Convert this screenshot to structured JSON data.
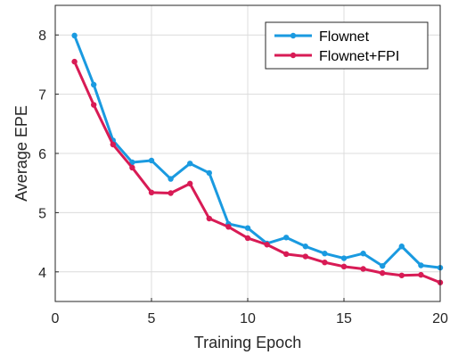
{
  "chart_data": {
    "type": "line",
    "xlabel": "Training Epoch",
    "ylabel": "Average EPE",
    "xlim": [
      0,
      20
    ],
    "ylim": [
      3.5,
      8.5
    ],
    "xticks": [
      0,
      5,
      10,
      15,
      20
    ],
    "yticks": [
      4,
      5,
      6,
      7,
      8
    ],
    "grid": true,
    "legend_position": "top-right",
    "x": [
      1,
      2,
      3,
      4,
      5,
      6,
      7,
      8,
      9,
      10,
      11,
      12,
      13,
      14,
      15,
      16,
      17,
      18,
      19,
      20
    ],
    "series": [
      {
        "name": "Flownet",
        "color": "#1a9ae0",
        "values": [
          7.99,
          7.16,
          6.22,
          5.85,
          5.88,
          5.57,
          5.83,
          5.67,
          4.81,
          4.74,
          4.48,
          4.58,
          4.43,
          4.31,
          4.23,
          4.31,
          4.1,
          4.43,
          4.11,
          4.07
        ]
      },
      {
        "name": "Flownet+FPI",
        "color": "#d81b55",
        "values": [
          7.55,
          6.82,
          6.15,
          5.76,
          5.34,
          5.33,
          5.49,
          4.9,
          4.76,
          4.57,
          4.46,
          4.3,
          4.26,
          4.16,
          4.09,
          4.05,
          3.98,
          3.94,
          3.95,
          3.82
        ]
      }
    ]
  }
}
